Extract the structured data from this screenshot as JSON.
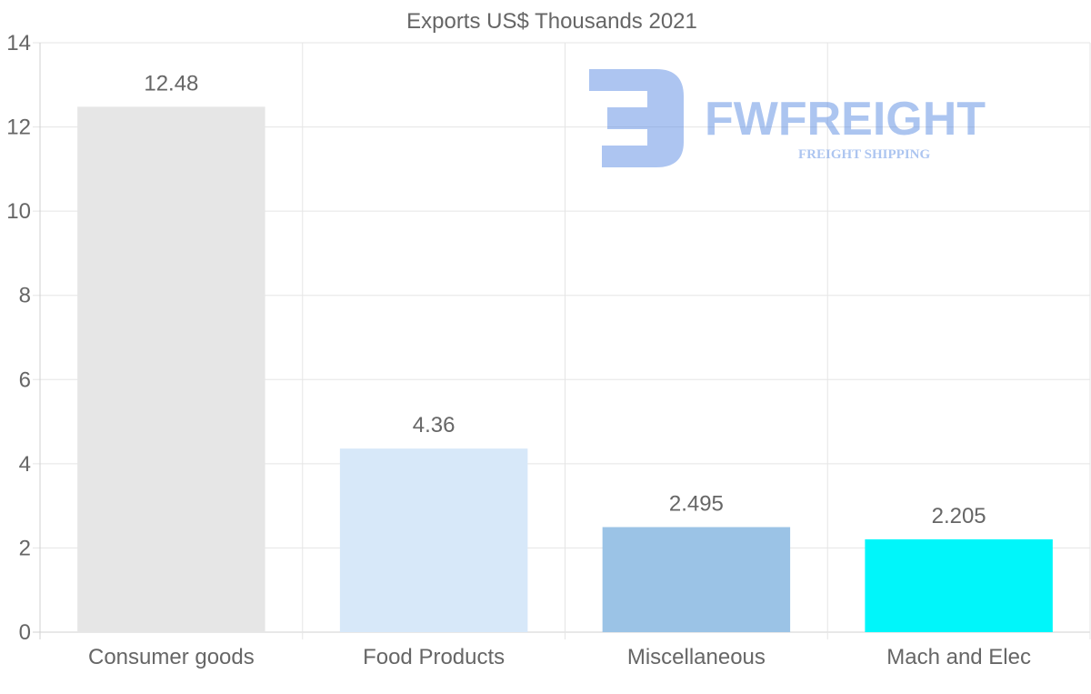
{
  "chart_data": {
    "type": "bar",
    "title": "Exports US$ Thousands 2021",
    "categories": [
      "Consumer goods",
      "Food Products",
      "Miscellaneous",
      "Mach and Elec"
    ],
    "values": [
      12.48,
      4.36,
      2.495,
      2.205
    ],
    "value_labels": [
      "12.48",
      "4.36",
      "2.495",
      "2.205"
    ],
    "colors": [
      "#e6e6e6",
      "#d7e8f9",
      "#9bc3e6",
      "#00f6fa"
    ],
    "ylim": [
      0,
      14
    ],
    "yticks": [
      0,
      2,
      4,
      6,
      8,
      10,
      12,
      14
    ],
    "xlabel": "",
    "ylabel": "",
    "grid": true,
    "legend": "none"
  },
  "watermark": {
    "brand": "FWFREIGHT",
    "tagline": "FREIGHT SHIPPING",
    "color": "#4a7fe0"
  }
}
